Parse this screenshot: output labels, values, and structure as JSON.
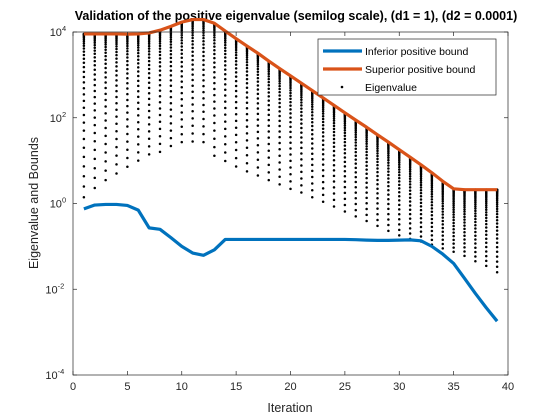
{
  "chart_data": {
    "type": "line",
    "title": "Validation of the positive eigenvalue (semilog scale), (d1 = 1), (d2 = 0.0001)",
    "xlabel": "Iteration",
    "ylabel": "Eigenvalue and Bounds",
    "xlim": [
      0,
      40
    ],
    "ylim": [
      0.0001,
      10000
    ],
    "yscale": "log",
    "xticks": [
      0,
      5,
      10,
      15,
      20,
      25,
      30,
      35,
      40
    ],
    "yticks": [
      {
        "base": "10",
        "exp": "-4",
        "value": 0.0001
      },
      {
        "base": "10",
        "exp": "-2",
        "value": 0.01
      },
      {
        "base": "10",
        "exp": "0",
        "value": 1
      },
      {
        "base": "10",
        "exp": "2",
        "value": 100
      },
      {
        "base": "10",
        "exp": "4",
        "value": 10000
      }
    ],
    "grid": false,
    "legend_position": "top-right",
    "colors": {
      "inferior": "#0072BD",
      "superior": "#D95319",
      "eigen": "#000000"
    },
    "series": [
      {
        "name": "Inferior positive bound",
        "style": "line",
        "x": [
          1,
          2,
          3,
          4,
          5,
          6,
          7,
          8,
          9,
          10,
          11,
          12,
          13,
          14,
          15,
          16,
          17,
          18,
          19,
          20,
          21,
          22,
          23,
          24,
          25,
          26,
          27,
          28,
          29,
          30,
          31,
          32,
          33,
          34,
          35,
          36,
          37,
          38,
          39
        ],
        "y": [
          0.75,
          0.92,
          0.95,
          0.95,
          0.9,
          0.7,
          0.27,
          0.25,
          0.16,
          0.1,
          0.07,
          0.062,
          0.083,
          0.145,
          0.145,
          0.145,
          0.145,
          0.145,
          0.145,
          0.145,
          0.145,
          0.145,
          0.145,
          0.145,
          0.145,
          0.143,
          0.14,
          0.138,
          0.138,
          0.14,
          0.142,
          0.135,
          0.1,
          0.066,
          0.04,
          0.018,
          0.008,
          0.0037,
          0.0018
        ]
      },
      {
        "name": "Superior positive bound",
        "style": "line",
        "x": [
          1,
          2,
          3,
          4,
          5,
          6,
          7,
          8,
          9,
          10,
          11,
          12,
          13,
          14,
          15,
          16,
          17,
          18,
          19,
          20,
          21,
          22,
          23,
          24,
          25,
          26,
          27,
          28,
          29,
          30,
          31,
          32,
          33,
          34,
          35,
          36,
          37,
          38,
          39
        ],
        "y": [
          9000,
          9000,
          9000,
          9000,
          8900,
          9000,
          9500,
          11000,
          13500,
          17000,
          19500,
          19500,
          16000,
          10500,
          7000,
          4700,
          3200,
          2100,
          1400,
          950,
          640,
          430,
          290,
          195,
          130,
          88,
          60,
          40,
          27,
          18,
          12,
          8,
          5.2,
          3.3,
          2.2,
          2.1,
          2.1,
          2.1,
          2.1
        ]
      },
      {
        "name": "Eigenvalue",
        "style": "dots",
        "x": [
          1,
          2,
          3,
          4,
          5,
          6,
          7,
          8,
          9,
          10,
          11,
          12,
          13,
          14,
          15,
          16,
          17,
          18,
          19,
          20,
          21,
          22,
          23,
          24,
          25,
          26,
          27,
          28,
          29,
          30,
          31,
          32,
          33,
          34,
          35,
          36,
          37,
          38,
          39
        ],
        "y_max": [
          9000,
          9000,
          9000,
          9000,
          8900,
          9000,
          9500,
          11000,
          13500,
          17000,
          19500,
          19500,
          16000,
          10500,
          7000,
          4700,
          3200,
          2100,
          1400,
          950,
          640,
          430,
          290,
          195,
          130,
          88,
          60,
          40,
          27,
          18,
          12,
          8,
          5.2,
          3.3,
          2.2,
          2.1,
          2.1,
          2.1,
          2.1
        ],
        "y_min": [
          1.4,
          2.3,
          3.5,
          5,
          7.2,
          10,
          14,
          16,
          22,
          27,
          28,
          27,
          13,
          9.8,
          7.3,
          5.6,
          4.5,
          3.5,
          2.8,
          2.2,
          1.8,
          1.4,
          1.1,
          0.85,
          0.65,
          0.5,
          0.39,
          0.3,
          0.23,
          0.18,
          0.15,
          0.13,
          0.11,
          0.09,
          0.075,
          0.06,
          0.045,
          0.035,
          0.025
        ]
      }
    ]
  }
}
